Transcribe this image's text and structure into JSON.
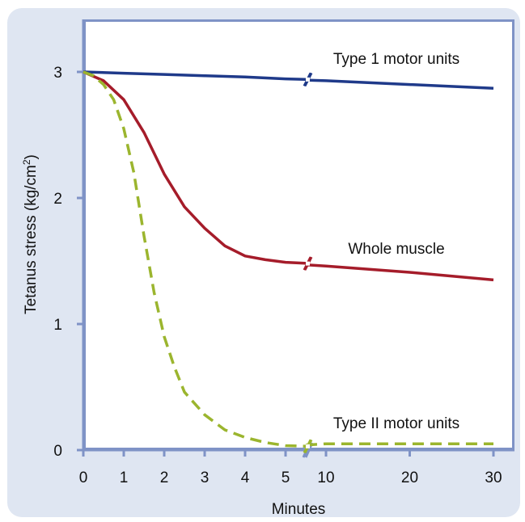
{
  "chart_data": {
    "type": "line",
    "title": "",
    "xlabel": "Minutes",
    "ylabel": "Tetanus stress (kg/cm",
    "ylabel_sup": "2",
    "ylabel_end": ")",
    "x_break": [
      5.6,
      7
    ],
    "x_ticks_left": [
      0,
      1,
      2,
      3,
      4,
      5
    ],
    "x_ticks_right": [
      10,
      20,
      30
    ],
    "y_ticks": [
      0,
      1,
      2,
      3
    ],
    "ylim": [
      0,
      3.4
    ],
    "grid": false,
    "series": [
      {
        "name": "Type 1 motor units",
        "style": "solid",
        "color": "#1f3a8a",
        "x": [
          0,
          1,
          2,
          3,
          4,
          5,
          5.6,
          7,
          10,
          20,
          30
        ],
        "y": [
          3.0,
          2.99,
          2.98,
          2.97,
          2.96,
          2.945,
          2.94,
          2.935,
          2.93,
          2.9,
          2.87
        ]
      },
      {
        "name": "Whole muscle",
        "style": "solid",
        "color": "#a51c2a",
        "x": [
          0,
          0.5,
          1,
          1.5,
          2,
          2.5,
          3,
          3.5,
          4,
          4.5,
          5,
          5.6,
          7,
          10,
          20,
          30
        ],
        "y": [
          3.0,
          2.93,
          2.78,
          2.52,
          2.19,
          1.93,
          1.76,
          1.62,
          1.54,
          1.51,
          1.49,
          1.48,
          1.47,
          1.46,
          1.41,
          1.35
        ]
      },
      {
        "name": "Type II motor units",
        "style": "dashed",
        "color": "#9bb52e",
        "x": [
          0,
          0.25,
          0.5,
          0.75,
          1,
          1.25,
          1.5,
          1.75,
          2,
          2.25,
          2.5,
          3,
          3.5,
          4,
          4.5,
          5,
          5.6,
          7,
          10,
          20,
          30
        ],
        "y": [
          3.0,
          2.97,
          2.9,
          2.78,
          2.55,
          2.2,
          1.7,
          1.25,
          0.9,
          0.66,
          0.46,
          0.28,
          0.16,
          0.1,
          0.06,
          0.035,
          0.03,
          0.04,
          0.05,
          0.05,
          0.05
        ]
      }
    ]
  }
}
